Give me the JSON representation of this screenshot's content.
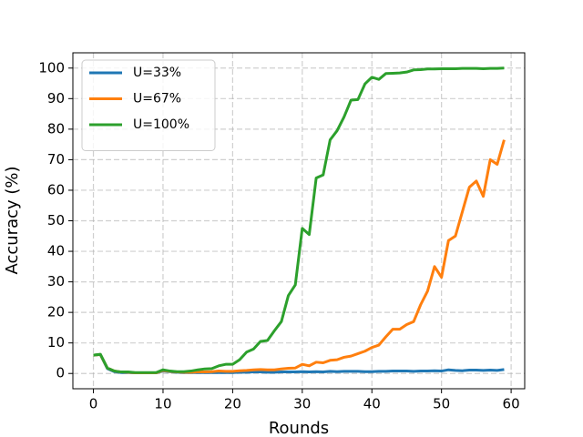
{
  "chart_data": {
    "type": "line",
    "x_label": "Rounds",
    "y_label": "Accuracy (%)",
    "x": [
      0,
      1,
      2,
      3,
      4,
      5,
      6,
      7,
      8,
      9,
      10,
      11,
      12,
      13,
      14,
      15,
      16,
      17,
      18,
      19,
      20,
      21,
      22,
      23,
      24,
      25,
      26,
      27,
      28,
      29,
      30,
      31,
      32,
      33,
      34,
      35,
      36,
      37,
      38,
      39,
      40,
      41,
      42,
      43,
      44,
      45,
      46,
      47,
      48,
      49,
      50,
      51,
      52,
      53,
      54,
      55,
      56,
      57,
      58,
      59
    ],
    "series": [
      {
        "name": "U=33%",
        "color": "#1f77b4",
        "values": [
          6,
          6.2,
          1.6,
          0.6,
          0.3,
          0.3,
          0.2,
          0.2,
          0.2,
          0.2,
          0.8,
          0.6,
          0.4,
          0.3,
          0.3,
          0.3,
          0.3,
          0.3,
          0.3,
          0.3,
          0.3,
          0.4,
          0.4,
          0.5,
          0.5,
          0.4,
          0.4,
          0.5,
          0.5,
          0.5,
          0.6,
          0.5,
          0.6,
          0.5,
          0.7,
          0.6,
          0.7,
          0.7,
          0.7,
          0.6,
          0.6,
          0.7,
          0.7,
          0.8,
          0.8,
          0.8,
          0.7,
          0.8,
          0.8,
          0.9,
          0.8,
          1.2,
          1,
          0.9,
          1.1,
          1.1,
          1,
          1.1,
          1,
          1.3
        ]
      },
      {
        "name": "U=67%",
        "color": "#ff7f0e",
        "values": [
          6,
          6.2,
          1.8,
          0.8,
          0.5,
          0.4,
          0.2,
          0.2,
          0.2,
          0.2,
          1,
          0.7,
          0.5,
          0.4,
          0.4,
          0.5,
          0.5,
          0.6,
          0.8,
          0.7,
          0.7,
          0.9,
          1,
          1.2,
          1.3,
          1.2,
          1.2,
          1.5,
          1.7,
          1.8,
          3,
          2.5,
          3.7,
          3.5,
          4.3,
          4.5,
          5.3,
          5.7,
          6.5,
          7.3,
          8.5,
          9.3,
          12,
          14.5,
          14.5,
          16,
          17,
          22.5,
          27,
          35,
          31.5,
          43.5,
          45,
          53,
          61,
          63,
          58,
          70,
          68.5,
          76.5
        ]
      },
      {
        "name": "U=100%",
        "color": "#2ca02c",
        "values": [
          6,
          6.3,
          1.8,
          0.8,
          0.5,
          0.5,
          0.3,
          0.3,
          0.3,
          0.3,
          1.2,
          0.8,
          0.6,
          0.6,
          0.8,
          1.2,
          1.5,
          1.6,
          2.5,
          3,
          3,
          4.5,
          7,
          8,
          10.5,
          10.8,
          14,
          17,
          25.5,
          29,
          47.5,
          45.5,
          64,
          65,
          76.5,
          79.5,
          84,
          89.5,
          89.7,
          94.8,
          97,
          96.3,
          98.2,
          98.3,
          98.4,
          98.7,
          99.4,
          99.5,
          99.7,
          99.7,
          99.8,
          99.8,
          99.8,
          99.9,
          99.9,
          99.9,
          99.8,
          99.9,
          99.9,
          100
        ]
      }
    ],
    "xlim": [
      -2.95,
      61.95
    ],
    "ylim": [
      -5,
      105
    ],
    "xticks": [
      0,
      10,
      20,
      30,
      40,
      50,
      60
    ],
    "yticks": [
      0,
      10,
      20,
      30,
      40,
      50,
      60,
      70,
      80,
      90,
      100
    ],
    "grid": true,
    "legend": "upper left"
  }
}
